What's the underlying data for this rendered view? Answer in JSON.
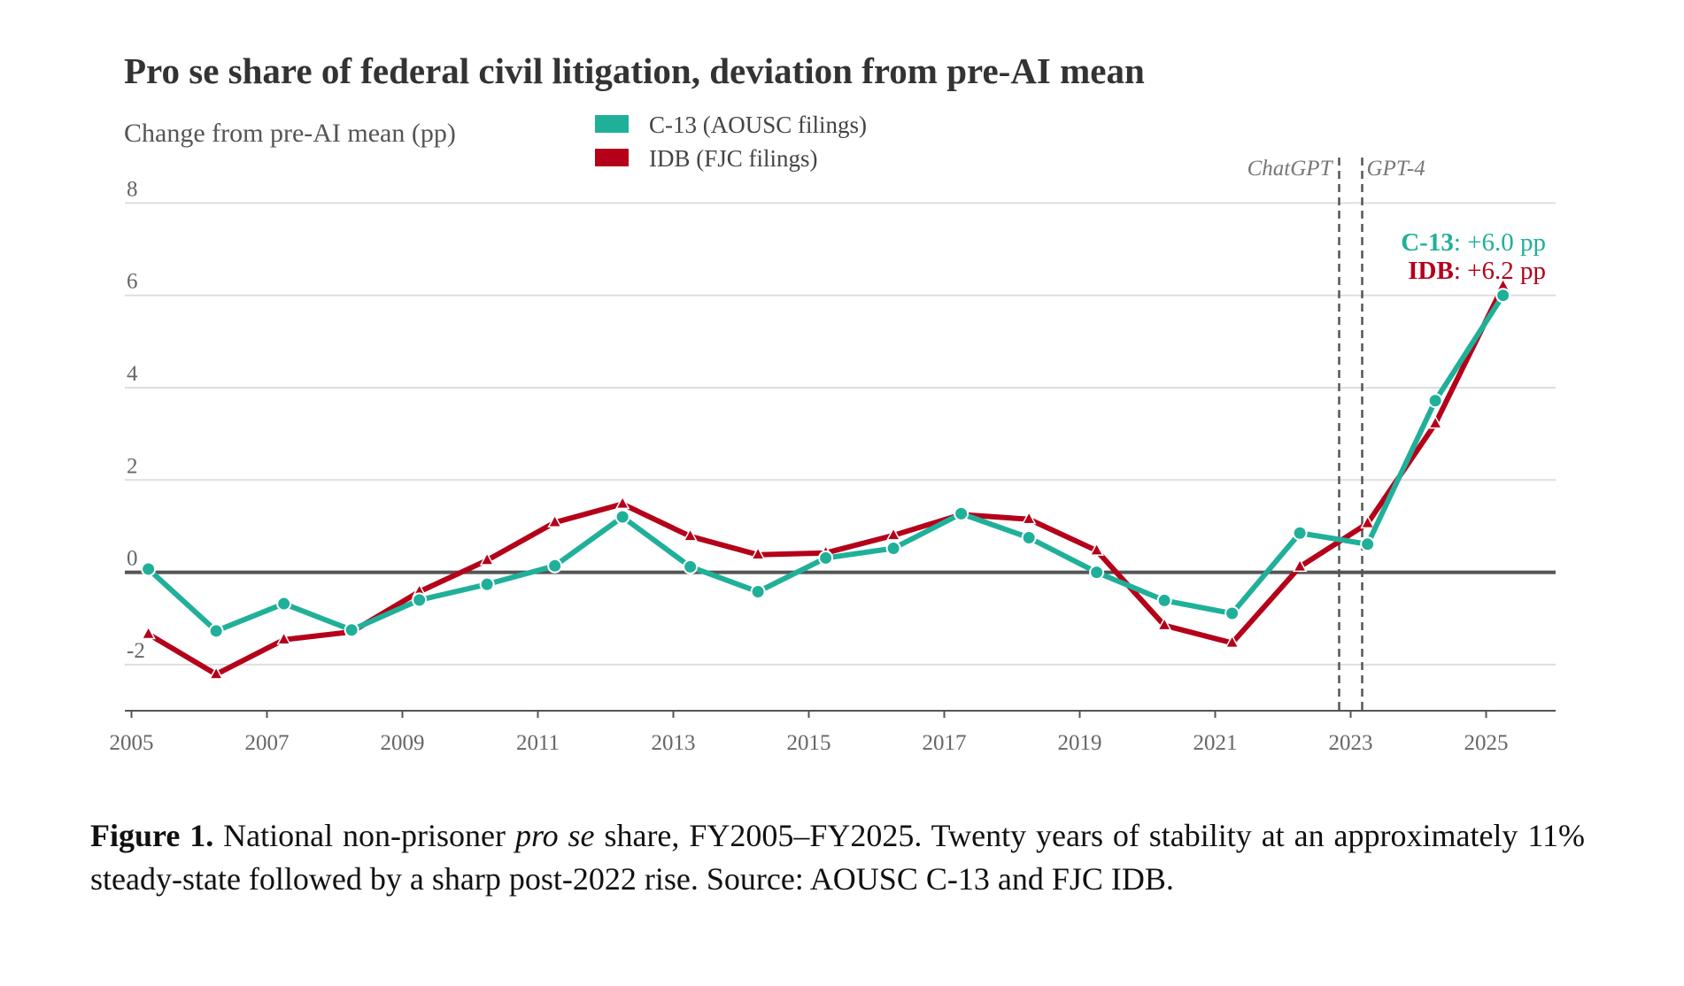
{
  "chart_data": {
    "type": "line",
    "title": "Pro se share of federal civil litigation, deviation from pre-AI mean",
    "ylabel": "Change from pre-AI mean (pp)",
    "xlabel": "",
    "ylim": [
      -3,
      8
    ],
    "xlim": [
      2005,
      2026
    ],
    "yticks": [
      -2,
      0,
      2,
      4,
      6,
      8
    ],
    "xticks": [
      2005,
      2007,
      2009,
      2011,
      2013,
      2015,
      2017,
      2019,
      2021,
      2023,
      2025
    ],
    "grid": "horizontal",
    "legend_position": "top-left",
    "x": [
      2005,
      2006,
      2007,
      2008,
      2009,
      2010,
      2011,
      2012,
      2013,
      2014,
      2015,
      2016,
      2017,
      2018,
      2019,
      2020,
      2021,
      2022,
      2023,
      2024,
      2025
    ],
    "series": [
      {
        "name": "C-13 (AOUSC filings)",
        "color": "#20b09a",
        "marker": "circle",
        "values": [
          0.07,
          -1.27,
          -0.68,
          -1.25,
          -0.6,
          -0.26,
          0.14,
          1.2,
          0.12,
          -0.42,
          0.31,
          0.52,
          1.27,
          0.75,
          0.0,
          -0.61,
          -0.89,
          0.85,
          0.61,
          3.72,
          6.0
        ]
      },
      {
        "name": "IDB (FJC filings)",
        "color": "#b5001a",
        "marker": "triangle",
        "values": [
          -1.34,
          -2.21,
          -1.46,
          -1.29,
          -0.42,
          0.26,
          1.08,
          1.48,
          0.78,
          0.38,
          0.42,
          0.8,
          1.25,
          1.15,
          0.47,
          -1.15,
          -1.53,
          0.12,
          1.06,
          3.22,
          6.2
        ]
      }
    ],
    "vlines": [
      {
        "label": "ChatGPT",
        "x": 2022.83
      },
      {
        "label": "GPT-4",
        "x": 2023.17
      }
    ],
    "annotations": {
      "c13_name": "C-13",
      "c13_value": ": +6.0 pp",
      "idb_name": "IDB",
      "idb_value": ": +6.2 pp"
    }
  },
  "caption": {
    "label": "Figure 1.",
    "text_1": " National non-prisoner ",
    "text_italic": "pro se",
    "text_2": " share, FY2005–FY2025. Twenty years of stability at an approximately 11% steady-state followed by a sharp post-2022 rise. Source: AOUSC C-13 and FJC IDB."
  }
}
